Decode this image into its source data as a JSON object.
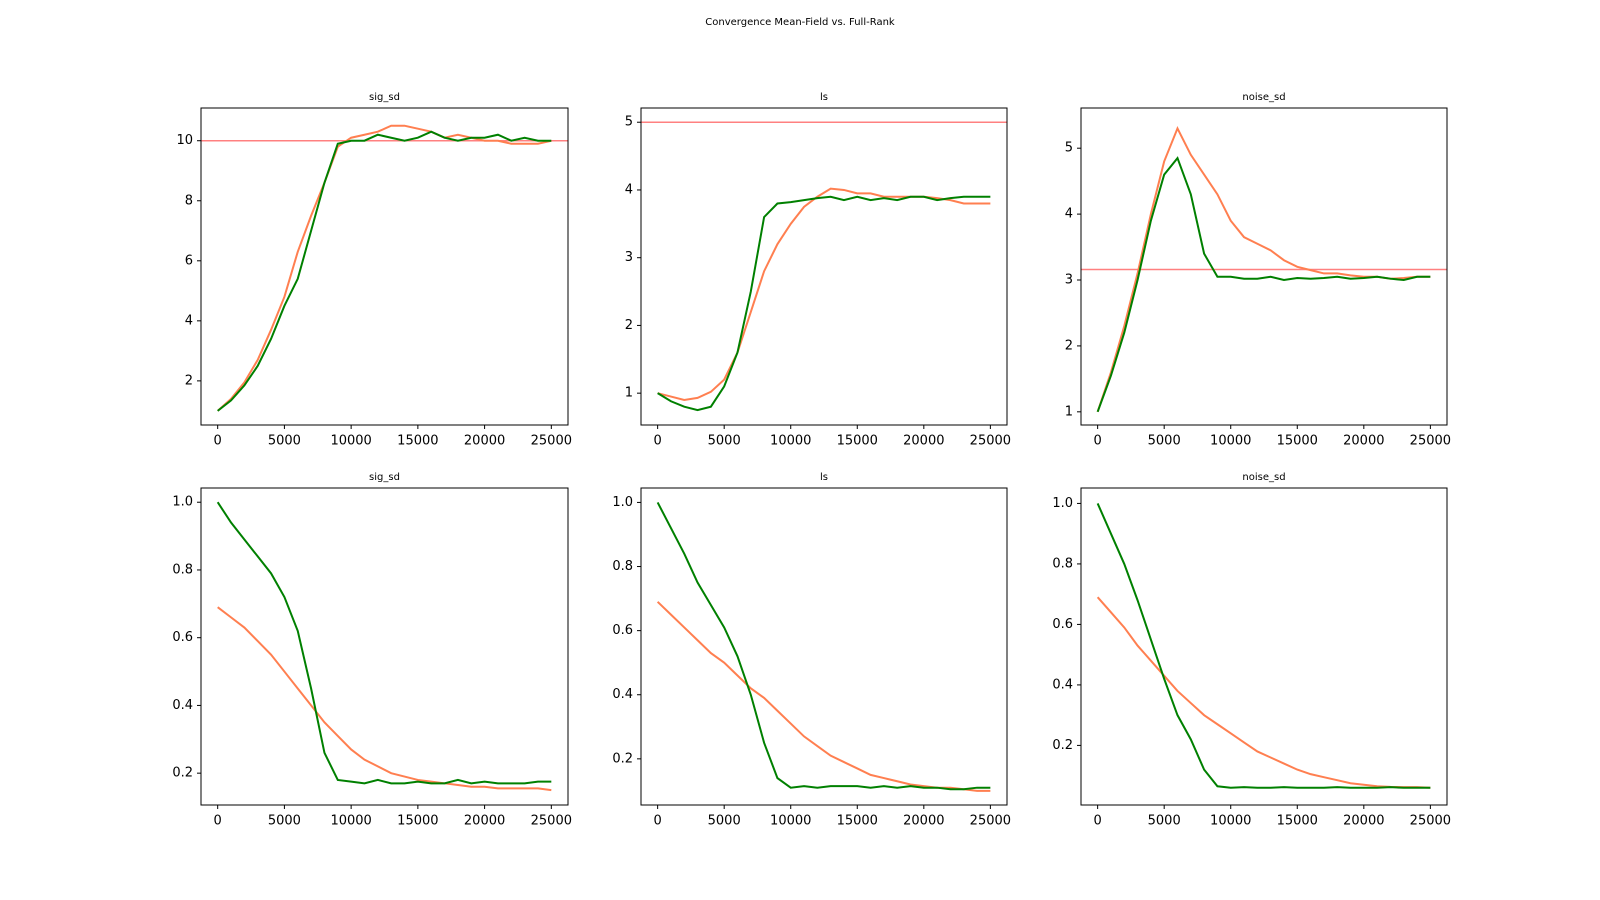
{
  "title": "Convergence Mean-Field vs. Full-Rank",
  "chart_data": [
    {
      "type": "line",
      "title": "sig_sd",
      "x": [
        0,
        1000,
        2000,
        3000,
        4000,
        5000,
        6000,
        7000,
        8000,
        9000,
        10000,
        11000,
        12000,
        13000,
        14000,
        15000,
        16000,
        17000,
        18000,
        19000,
        20000,
        21000,
        22000,
        23000,
        24000,
        25000
      ],
      "series": [
        {
          "color": "#ff7f50",
          "values": [
            1,
            1.4,
            1.95,
            2.7,
            3.7,
            4.8,
            6.3,
            7.5,
            8.6,
            9.8,
            10.1,
            10.2,
            10.3,
            10.5,
            10.5,
            10.4,
            10.3,
            10.1,
            10.2,
            10.1,
            10.0,
            10.0,
            9.9,
            9.9,
            9.9,
            10.0
          ]
        },
        {
          "color": "#008000",
          "values": [
            1,
            1.35,
            1.85,
            2.5,
            3.4,
            4.5,
            5.4,
            7.0,
            8.6,
            9.9,
            10.0,
            10.0,
            10.2,
            10.1,
            10.0,
            10.1,
            10.3,
            10.1,
            10.0,
            10.1,
            10.1,
            10.2,
            10.0,
            10.1,
            10.0,
            10.0
          ]
        }
      ],
      "hline": 10,
      "hline_color": "#ff8080",
      "xlim": [
        -1250,
        26250
      ],
      "xticks": [
        0,
        5000,
        10000,
        15000,
        20000,
        25000
      ],
      "ylim": [
        0.53,
        11.09
      ],
      "yticks": [
        2,
        4,
        6,
        8,
        10
      ]
    },
    {
      "type": "line",
      "title": "ls",
      "x": [
        0,
        1000,
        2000,
        3000,
        4000,
        5000,
        6000,
        7000,
        8000,
        9000,
        10000,
        11000,
        12000,
        13000,
        14000,
        15000,
        16000,
        17000,
        18000,
        19000,
        20000,
        21000,
        22000,
        23000,
        24000,
        25000
      ],
      "series": [
        {
          "color": "#ff7f50",
          "values": [
            1.0,
            0.95,
            0.9,
            0.93,
            1.02,
            1.2,
            1.6,
            2.2,
            2.8,
            3.2,
            3.5,
            3.75,
            3.9,
            4.02,
            4.0,
            3.95,
            3.95,
            3.9,
            3.9,
            3.9,
            3.9,
            3.88,
            3.85,
            3.8,
            3.8,
            3.8
          ]
        },
        {
          "color": "#008000",
          "values": [
            1.0,
            0.88,
            0.8,
            0.75,
            0.8,
            1.1,
            1.6,
            2.5,
            3.6,
            3.8,
            3.82,
            3.85,
            3.88,
            3.9,
            3.85,
            3.9,
            3.85,
            3.88,
            3.85,
            3.9,
            3.9,
            3.85,
            3.88,
            3.9,
            3.9,
            3.9
          ]
        }
      ],
      "hline": 5,
      "hline_color": "#ff8080",
      "xlim": [
        -1250,
        26250
      ],
      "xticks": [
        0,
        5000,
        10000,
        15000,
        20000,
        25000
      ],
      "ylim": [
        0.53,
        5.21
      ],
      "yticks": [
        1,
        2,
        3,
        4,
        5
      ]
    },
    {
      "type": "line",
      "title": "noise_sd",
      "x": [
        0,
        1000,
        2000,
        3000,
        4000,
        5000,
        6000,
        7000,
        8000,
        9000,
        10000,
        11000,
        12000,
        13000,
        14000,
        15000,
        16000,
        17000,
        18000,
        19000,
        20000,
        21000,
        22000,
        23000,
        24000,
        25000
      ],
      "series": [
        {
          "color": "#ff7f50",
          "values": [
            1,
            1.6,
            2.3,
            3.1,
            4.0,
            4.8,
            5.3,
            4.9,
            4.6,
            4.3,
            3.9,
            3.65,
            3.55,
            3.45,
            3.3,
            3.2,
            3.15,
            3.1,
            3.1,
            3.07,
            3.05,
            3.05,
            3.02,
            3.03,
            3.05,
            3.05
          ]
        },
        {
          "color": "#008000",
          "values": [
            1,
            1.55,
            2.2,
            3.0,
            3.9,
            4.6,
            4.85,
            4.3,
            3.4,
            3.05,
            3.05,
            3.02,
            3.02,
            3.05,
            3.0,
            3.03,
            3.02,
            3.03,
            3.05,
            3.02,
            3.03,
            3.05,
            3.02,
            3.0,
            3.05,
            3.05
          ]
        }
      ],
      "hline": 3.16,
      "hline_color": "#ff8080",
      "xlim": [
        -1250,
        26250
      ],
      "xticks": [
        0,
        5000,
        10000,
        15000,
        20000,
        25000
      ],
      "ylim": [
        0.8,
        5.61
      ],
      "yticks": [
        1,
        2,
        3,
        4,
        5
      ]
    },
    {
      "type": "line",
      "title": "sig_sd",
      "x": [
        0,
        1000,
        2000,
        3000,
        4000,
        5000,
        6000,
        7000,
        8000,
        9000,
        10000,
        11000,
        12000,
        13000,
        14000,
        15000,
        16000,
        17000,
        18000,
        19000,
        20000,
        21000,
        22000,
        23000,
        24000,
        25000
      ],
      "series": [
        {
          "color": "#ff7f50",
          "values": [
            0.69,
            0.66,
            0.63,
            0.59,
            0.55,
            0.5,
            0.45,
            0.4,
            0.35,
            0.31,
            0.27,
            0.24,
            0.22,
            0.2,
            0.19,
            0.18,
            0.175,
            0.17,
            0.165,
            0.16,
            0.16,
            0.155,
            0.155,
            0.155,
            0.155,
            0.15
          ]
        },
        {
          "color": "#008000",
          "values": [
            1.0,
            0.94,
            0.89,
            0.84,
            0.79,
            0.72,
            0.62,
            0.45,
            0.26,
            0.18,
            0.175,
            0.17,
            0.18,
            0.17,
            0.17,
            0.175,
            0.17,
            0.17,
            0.18,
            0.17,
            0.175,
            0.17,
            0.17,
            0.17,
            0.175,
            0.175
          ]
        }
      ],
      "xlim": [
        -1250,
        26250
      ],
      "xticks": [
        0,
        5000,
        10000,
        15000,
        20000,
        25000
      ],
      "ylim": [
        0.106,
        1.042
      ],
      "yticks": [
        0.2,
        0.4,
        0.6,
        0.8,
        {
          "value": 1,
          "label": "1.0"
        }
      ]
    },
    {
      "type": "line",
      "title": "ls",
      "x": [
        0,
        1000,
        2000,
        3000,
        4000,
        5000,
        6000,
        7000,
        8000,
        9000,
        10000,
        11000,
        12000,
        13000,
        14000,
        15000,
        16000,
        17000,
        18000,
        19000,
        20000,
        21000,
        22000,
        23000,
        24000,
        25000
      ],
      "series": [
        {
          "color": "#ff7f50",
          "values": [
            0.69,
            0.65,
            0.61,
            0.57,
            0.53,
            0.5,
            0.46,
            0.42,
            0.39,
            0.35,
            0.31,
            0.27,
            0.24,
            0.21,
            0.19,
            0.17,
            0.15,
            0.14,
            0.13,
            0.12,
            0.115,
            0.11,
            0.11,
            0.105,
            0.1,
            0.1
          ]
        },
        {
          "color": "#008000",
          "values": [
            1.0,
            0.92,
            0.84,
            0.75,
            0.68,
            0.61,
            0.52,
            0.4,
            0.25,
            0.14,
            0.11,
            0.115,
            0.11,
            0.115,
            0.115,
            0.115,
            0.11,
            0.115,
            0.11,
            0.115,
            0.11,
            0.11,
            0.105,
            0.105,
            0.11,
            0.11
          ]
        }
      ],
      "xlim": [
        -1250,
        26250
      ],
      "xticks": [
        0,
        5000,
        10000,
        15000,
        20000,
        25000
      ],
      "ylim": [
        0.056,
        1.045
      ],
      "yticks": [
        0.2,
        0.4,
        0.6,
        0.8,
        {
          "value": 1,
          "label": "1.0"
        }
      ]
    },
    {
      "type": "line",
      "title": "noise_sd",
      "x": [
        0,
        1000,
        2000,
        3000,
        4000,
        5000,
        6000,
        7000,
        8000,
        9000,
        10000,
        11000,
        12000,
        13000,
        14000,
        15000,
        16000,
        17000,
        18000,
        19000,
        20000,
        21000,
        22000,
        23000,
        24000,
        25000
      ],
      "series": [
        {
          "color": "#ff7f50",
          "values": [
            0.69,
            0.64,
            0.59,
            0.53,
            0.48,
            0.43,
            0.38,
            0.34,
            0.3,
            0.27,
            0.24,
            0.21,
            0.18,
            0.16,
            0.14,
            0.12,
            0.105,
            0.095,
            0.085,
            0.075,
            0.07,
            0.065,
            0.063,
            0.062,
            0.062,
            0.06
          ]
        },
        {
          "color": "#008000",
          "values": [
            1.0,
            0.9,
            0.8,
            0.68,
            0.55,
            0.42,
            0.3,
            0.22,
            0.12,
            0.065,
            0.06,
            0.062,
            0.06,
            0.06,
            0.062,
            0.06,
            0.06,
            0.06,
            0.062,
            0.06,
            0.06,
            0.06,
            0.062,
            0.06,
            0.06,
            0.06
          ]
        }
      ],
      "xlim": [
        -1250,
        26250
      ],
      "xticks": [
        0,
        5000,
        10000,
        15000,
        20000,
        25000
      ],
      "ylim": [
        0.003,
        1.051
      ],
      "yticks": [
        0.2,
        0.4,
        0.6,
        0.8,
        {
          "value": 1,
          "label": "1.0"
        }
      ]
    }
  ]
}
